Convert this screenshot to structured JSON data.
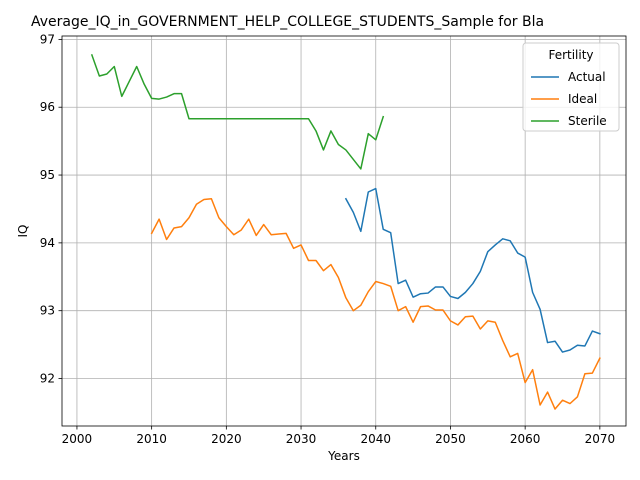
{
  "chart_data": {
    "type": "line",
    "title": "Average_IQ_in_GOVERNMENT_HELP_COLLEGE_STUDENTS_Sample for Bla",
    "xlabel": "Years",
    "ylabel": "IQ",
    "xlim": [
      1998,
      2073.5
    ],
    "ylim": [
      91.3,
      97.05
    ],
    "xticks": [
      2000,
      2010,
      2020,
      2030,
      2040,
      2050,
      2060,
      2070
    ],
    "xtick_labels": [
      "2000",
      "2010",
      "2020",
      "2030",
      "2040",
      "2050",
      "2060",
      "2070"
    ],
    "yticks": [
      92,
      93,
      94,
      95,
      96,
      97
    ],
    "ytick_labels": [
      "92",
      "93",
      "94",
      "95",
      "96",
      "97"
    ],
    "grid": true,
    "legend": {
      "title": "Fertility",
      "placement": "top-right"
    },
    "series": [
      {
        "name": "Actual",
        "color": "#1f77b4",
        "x": [
          2036,
          2037,
          2038,
          2039,
          2040,
          2041,
          2042,
          2043,
          2044,
          2045,
          2046,
          2047,
          2048,
          2049,
          2050,
          2051,
          2052,
          2053,
          2054,
          2055,
          2056,
          2057,
          2058,
          2059,
          2060,
          2061,
          2062,
          2063,
          2064,
          2065,
          2066,
          2067,
          2068,
          2069,
          2070
        ],
        "y": [
          94.65,
          94.45,
          94.17,
          94.75,
          94.8,
          94.2,
          94.15,
          93.4,
          93.45,
          93.2,
          93.25,
          93.26,
          93.35,
          93.35,
          93.21,
          93.18,
          93.27,
          93.4,
          93.58,
          93.87,
          93.97,
          94.06,
          94.03,
          93.85,
          93.79,
          93.27,
          93.02,
          92.53,
          92.55,
          92.39,
          92.42,
          92.49,
          92.48,
          92.7,
          92.66
        ]
      },
      {
        "name": "Ideal",
        "color": "#ff7f0e",
        "x": [
          2010,
          2011,
          2012,
          2013,
          2014,
          2015,
          2016,
          2017,
          2018,
          2019,
          2020,
          2021,
          2022,
          2023,
          2024,
          2025,
          2026,
          2027,
          2028,
          2029,
          2030,
          2031,
          2032,
          2033,
          2034,
          2035,
          2036,
          2037,
          2038,
          2039,
          2040,
          2041,
          2042,
          2043,
          2044,
          2045,
          2046,
          2047,
          2048,
          2049,
          2050,
          2051,
          2052,
          2053,
          2054,
          2055,
          2056,
          2057,
          2058,
          2059,
          2060,
          2061,
          2062,
          2063,
          2064,
          2065,
          2066,
          2067,
          2068,
          2069,
          2070
        ],
        "y": [
          94.14,
          94.35,
          94.05,
          94.22,
          94.24,
          94.37,
          94.57,
          94.64,
          94.65,
          94.37,
          94.24,
          94.12,
          94.19,
          94.35,
          94.11,
          94.27,
          94.12,
          94.13,
          94.14,
          93.92,
          93.97,
          93.74,
          93.74,
          93.59,
          93.68,
          93.49,
          93.19,
          93.0,
          93.08,
          93.28,
          93.43,
          93.4,
          93.36,
          93.0,
          93.06,
          92.83,
          93.06,
          93.07,
          93.01,
          93.01,
          92.85,
          92.79,
          92.91,
          92.92,
          92.73,
          92.85,
          92.83,
          92.56,
          92.32,
          92.37,
          91.94,
          92.13,
          91.61,
          91.8,
          91.55,
          91.68,
          91.63,
          91.73,
          92.07,
          92.08,
          92.3
        ]
      },
      {
        "name": "Sterile",
        "color": "#2ca02c",
        "x": [
          2002,
          2003,
          2004,
          2005,
          2006,
          2007,
          2008,
          2009,
          2010,
          2011,
          2012,
          2013,
          2014,
          2015,
          2016,
          2017,
          2018,
          2019,
          2020,
          2021,
          2022,
          2023,
          2024,
          2025,
          2026,
          2027,
          2028,
          2029,
          2030,
          2031,
          2032,
          2033,
          2034,
          2035,
          2036,
          2037,
          2038,
          2039,
          2040,
          2041
        ],
        "y": [
          96.77,
          96.46,
          96.49,
          96.6,
          96.16,
          96.38,
          96.6,
          96.34,
          96.13,
          96.12,
          96.15,
          96.2,
          96.2,
          95.83,
          95.83,
          95.83,
          95.83,
          95.83,
          95.83,
          95.83,
          95.83,
          95.83,
          95.83,
          95.83,
          95.83,
          95.83,
          95.83,
          95.83,
          95.83,
          95.83,
          95.65,
          95.37,
          95.65,
          95.45,
          95.37,
          95.23,
          95.09,
          95.61,
          95.52,
          95.86
        ]
      }
    ]
  }
}
